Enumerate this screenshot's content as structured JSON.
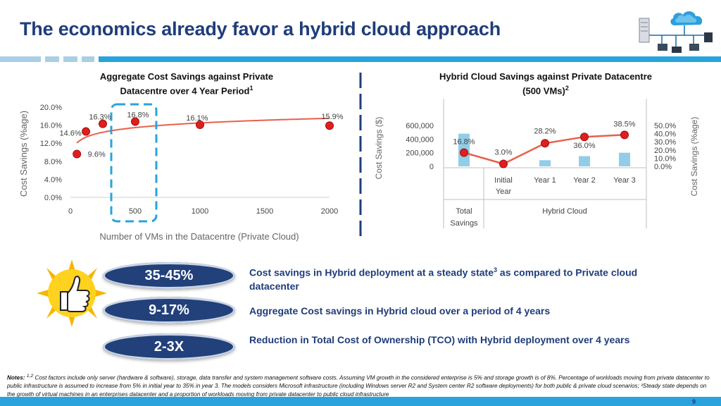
{
  "slide": {
    "title": "The economics already favor a hybrid cloud approach",
    "page_number": "9"
  },
  "chart_data": [
    {
      "type": "scatter",
      "title": "Aggregate Cost Savings against Private Datacentre over 4 Year Period",
      "title_sup": "1",
      "xlabel": "Number of VMs in the Datacentre (Private Cloud)",
      "ylabel": "Cost Savings (%age)",
      "x_ticks": [
        "0",
        "500",
        "1000",
        "1500",
        "2000"
      ],
      "y_ticks": [
        "0.0%",
        "4.0%",
        "8.0%",
        "12.0%",
        "16.0%",
        "20.0%"
      ],
      "xlim": [
        0,
        2000
      ],
      "ylim": [
        0,
        20
      ],
      "points": [
        {
          "x": 50,
          "y": 9.6,
          "label": "9.6%"
        },
        {
          "x": 120,
          "y": 14.6,
          "label": "14.6%"
        },
        {
          "x": 250,
          "y": 16.3,
          "label": "16.3%"
        },
        {
          "x": 500,
          "y": 16.8,
          "label": "16.8%"
        },
        {
          "x": 1000,
          "y": 16.1,
          "label": "16.1%"
        },
        {
          "x": 2000,
          "y": 15.9,
          "label": "15.9%"
        }
      ],
      "trendline": true,
      "highlight": "500"
    },
    {
      "type": "bar",
      "title": "Hybrid Cloud Savings against Private Datacentre (500 VMs)",
      "title_sup": "2",
      "categories": [
        "",
        "Initial Year",
        "Year 1",
        "Year 2",
        "Year 3"
      ],
      "group_labels": [
        "Total Savings",
        "Hybrid Cloud"
      ],
      "ylabel_left": "Cost Savings ($)",
      "ylabel_right": "Cost Savings (%age)",
      "y_ticks_left": [
        "0",
        "200,000",
        "400,000",
        "600,000"
      ],
      "y_ticks_right": [
        "0.0%",
        "10.0%",
        "20.0%",
        "30.0%",
        "40.0%",
        "50.0%"
      ],
      "ylim_left": [
        0,
        600000
      ],
      "ylim_right": [
        0,
        50
      ],
      "series": [
        {
          "values": [
            480000,
            0,
            90000,
            150000,
            200000
          ]
        },
        {
          "values": [
            16.8,
            3.0,
            28.2,
            36.0,
            38.5
          ],
          "labels": [
            "16.8%",
            "3.0%",
            "28.2%",
            "36.0%",
            "38.5%"
          ]
        }
      ]
    }
  ],
  "stats": [
    {
      "value": "35-45%",
      "text": "Cost savings in Hybrid deployment at a steady state",
      "sup": "3",
      "text_after": " as compared to Private cloud datacenter"
    },
    {
      "value": "9-17%",
      "text": "Aggregate Cost savings in Hybrid cloud over a period of 4 years",
      "sup": "",
      "text_after": ""
    },
    {
      "value": "2-3X",
      "text": "Reduction in Total Cost of Ownership (TCO) with Hybrid deployment over 4 years",
      "sup": "",
      "text_after": ""
    }
  ],
  "notes": {
    "label": "Notes:",
    "sup": "1,2",
    "text": " Cost factors include only server (hardware & software), storage, data transfer and system management software costs. Assuming VM growth in the considered enterprise is 5% and storage growth is of 8%. Percentage of workloads moving from private datacenter to public infrastructure is assumed to increase from 5% in initial year to 35% in year 3. The models considers Microsoft infrastructure (including Windows server R2 and System center R2 software deployments) for both public & private cloud scenarios; ³Steady state depends on the growth of virtual machines in an enterprises datacenter and a proportion of workloads moving from private datacenter to public cloud infrastructure"
  },
  "colors": {
    "title": "#1f3d7a",
    "accent": "#29a3dd",
    "point": "#e01e1e",
    "trend": "#e8604c",
    "bar": "#92cde8",
    "pill": "#22407a"
  }
}
